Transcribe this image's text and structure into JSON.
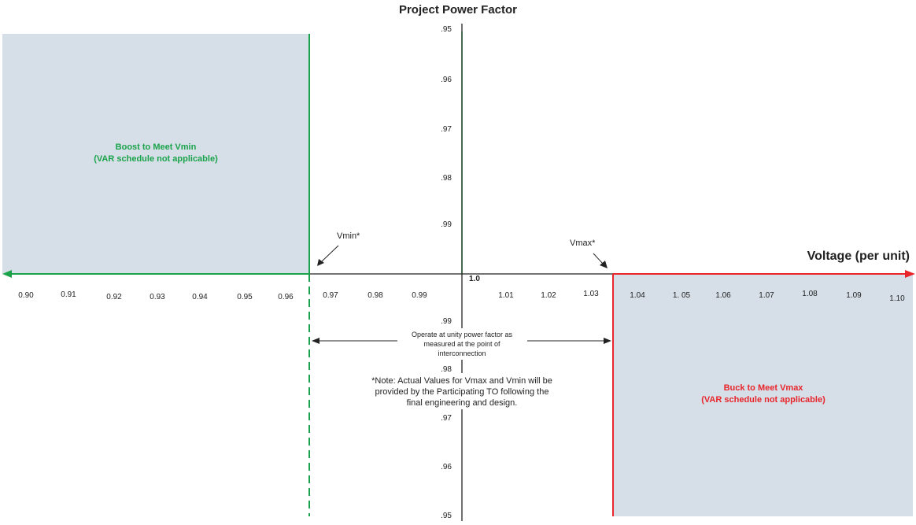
{
  "title": "Project Power Factor",
  "x_axis_label": "Voltage (per unit)",
  "colors": {
    "region_fill": "#d6dfe8",
    "boost_green": "#1aa34a",
    "buck_red": "#e8252a",
    "axis": "#222222"
  },
  "boost_region": {
    "line1": "Boost to Meet Vmin",
    "line2": "(VAR schedule not applicable)"
  },
  "buck_region": {
    "line1": "Buck to Meet Vmax",
    "line2": "(VAR schedule not applicable)"
  },
  "vmin_label": "Vmin*",
  "vmax_label": "Vmax*",
  "unity_note": {
    "line1": "Operate at unity power factor as",
    "line2": "measured at the point of",
    "line3": "interconnection"
  },
  "footnote": {
    "line1": "*Note: Actual Values for Vmax and Vmin will be",
    "line2": "provided by the Participating TO following the",
    "line3": "final engineering and design."
  },
  "x_ticks": [
    "0.90",
    "0.91",
    "0.92",
    "0.93",
    "0.94",
    "0.95",
    "0.96",
    "0.97",
    "0.98",
    "0.99",
    "1.0",
    "1.01",
    "1.02",
    "1.03",
    "1.04",
    "1. 05",
    "1.06",
    "1.07",
    "1.08",
    "1.09",
    "1.10"
  ],
  "y_ticks_upper": [
    ".95",
    ".96",
    ".97",
    ".98",
    ".99"
  ],
  "y_ticks_lower": [
    ".99",
    ".98",
    ".97",
    ".96",
    ".95"
  ]
}
